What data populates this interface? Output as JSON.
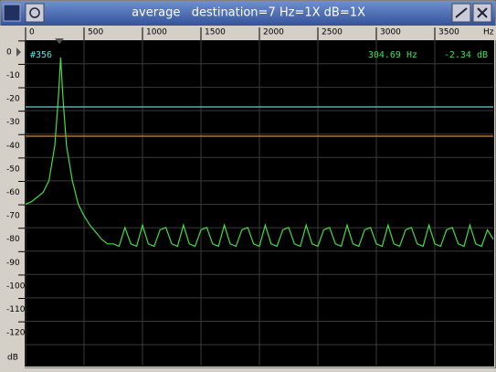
{
  "window": {
    "title": "average   destination=7 Hz=1X dB=1X"
  },
  "chart_data": {
    "type": "line",
    "readout": {
      "index": "#356",
      "frequency": "304.69 Hz",
      "level": "-2.34 dB"
    },
    "x_unit": "Hz",
    "y_unit": "dB",
    "xlim": [
      0,
      4000
    ],
    "xticks": [
      0,
      500,
      1000,
      1500,
      2000,
      2500,
      3000,
      3500
    ],
    "ylim": [
      -134,
      5
    ],
    "yticks": [
      0,
      -10,
      -20,
      -30,
      -40,
      -50,
      -60,
      -70,
      -80,
      -90,
      -100,
      -110,
      -120
    ],
    "grid": true,
    "series": [
      {
        "color": "#44dd44",
        "x": [
          0,
          50,
          100,
          150,
          200,
          250,
          280,
          300,
          320,
          350,
          400,
          450,
          500,
          550,
          600,
          650,
          700,
          750,
          800,
          850,
          900,
          950,
          1000,
          1050,
          1100,
          1150,
          1200,
          1250,
          1300,
          1350,
          1400,
          1450,
          1500,
          1550,
          1600,
          1650,
          1700,
          1750,
          1800,
          1850,
          1900,
          1950,
          2000,
          2050,
          2100,
          2150,
          2200,
          2250,
          2300,
          2350,
          2400,
          2450,
          2500,
          2550,
          2600,
          2650,
          2700,
          2750,
          2800,
          2850,
          2900,
          2950,
          3000,
          3050,
          3100,
          3150,
          3200,
          3250,
          3300,
          3350,
          3400,
          3450,
          3500,
          3550,
          3600,
          3650,
          3700,
          3750,
          3800,
          3850,
          3900,
          3950,
          4000
        ],
        "values": [
          -65,
          -64,
          -62,
          -60,
          -55,
          -40,
          -20,
          -2.34,
          -20,
          -40,
          -55,
          -65,
          -70,
          -74,
          -77,
          -80,
          -82,
          -82,
          -83,
          -75,
          -82,
          -83,
          -74,
          -82,
          -83,
          -76,
          -75,
          -82,
          -83,
          -74,
          -82,
          -83,
          -76,
          -75,
          -82,
          -83,
          -74,
          -82,
          -83,
          -76,
          -75,
          -82,
          -83,
          -74,
          -82,
          -83,
          -76,
          -75,
          -82,
          -83,
          -74,
          -82,
          -83,
          -76,
          -75,
          -82,
          -83,
          -74,
          -82,
          -83,
          -76,
          -75,
          -82,
          -83,
          -74,
          -82,
          -83,
          -76,
          -75,
          -82,
          -83,
          -74,
          -82,
          -83,
          -76,
          -75,
          -82,
          -83,
          -74,
          -82,
          -83,
          -76,
          -80
        ]
      },
      {
        "color": "#66cccc",
        "x": [
          0,
          4000
        ],
        "values": [
          -23.5,
          -23.5
        ]
      },
      {
        "color": "#dd8833",
        "x": [
          0,
          4000
        ],
        "values": [
          -36,
          -36
        ]
      }
    ]
  }
}
